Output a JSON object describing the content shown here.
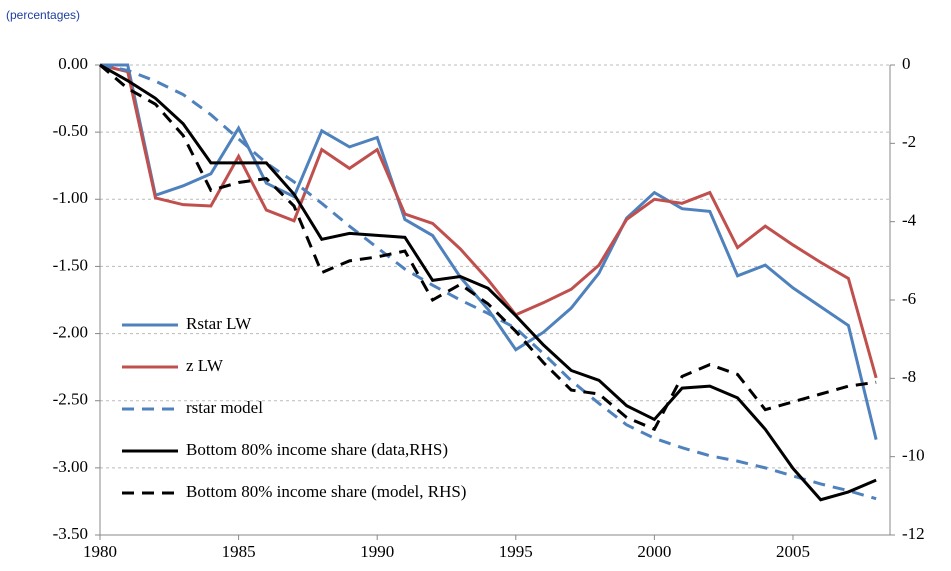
{
  "chart_data": {
    "type": "line",
    "subtitle": "(percentages)",
    "x": [
      1980,
      1981,
      1982,
      1983,
      1984,
      1985,
      1986,
      1987,
      1988,
      1989,
      1990,
      1991,
      1992,
      1993,
      1994,
      1995,
      1996,
      1997,
      1998,
      1999,
      2000,
      2001,
      2002,
      2003,
      2004,
      2005,
      2006,
      2007,
      2008
    ],
    "xlim": [
      1980,
      2008.5
    ],
    "xticks": [
      1980,
      1985,
      1990,
      1995,
      2000,
      2005
    ],
    "ylim": [
      -3.5,
      0
    ],
    "yticks": [
      {
        "value": 0,
        "label": "0.00"
      },
      {
        "value": -0.5,
        "label": "-0.50"
      },
      {
        "value": -1,
        "label": "-1.00"
      },
      {
        "value": -1.5,
        "label": "-1.50"
      },
      {
        "value": -2,
        "label": "-2.00"
      },
      {
        "value": -2.5,
        "label": "-2.50"
      },
      {
        "value": -3,
        "label": "-3.00"
      },
      {
        "value": -3.5,
        "label": "-3.50"
      }
    ],
    "y2lim": [
      -12,
      0
    ],
    "y2ticks": [
      0,
      -2,
      -4,
      -6,
      -8,
      -10,
      -12
    ],
    "grid": true,
    "series": [
      {
        "name": "Rstar LW",
        "color": "#4f81bd",
        "dash": false,
        "values": [
          0,
          0,
          -0.97,
          -0.9,
          -0.81,
          -0.47,
          -0.88,
          -0.98,
          -0.49,
          -0.61,
          -0.54,
          -1.15,
          -1.27,
          -1.58,
          -1.82,
          -2.12,
          -1.99,
          -1.81,
          -1.55,
          -1.14,
          -0.95,
          -1.07,
          -1.09,
          -1.57,
          -1.49,
          -1.66,
          -1.8,
          -1.94,
          -2.79
        ]
      },
      {
        "name": "z LW",
        "color": "#c0504d",
        "dash": false,
        "values": [
          0,
          -0.05,
          -0.99,
          -1.04,
          -1.05,
          -0.68,
          -1.08,
          -1.16,
          -0.63,
          -0.77,
          -0.63,
          -1.11,
          -1.18,
          -1.37,
          -1.6,
          -1.86,
          -1.77,
          -1.67,
          -1.49,
          -1.15,
          -1,
          -1.03,
          -0.95,
          -1.36,
          -1.2,
          -1.34,
          -1.47,
          -1.59,
          -2.33
        ]
      },
      {
        "name": "rstar model",
        "color": "#4f81bd",
        "dash": true,
        "values": [
          0,
          -0.04,
          -0.12,
          -0.22,
          -0.37,
          -0.55,
          -0.73,
          -0.87,
          -1.03,
          -1.2,
          -1.36,
          -1.52,
          -1.64,
          -1.75,
          -1.85,
          -1.96,
          -2.15,
          -2.35,
          -2.52,
          -2.68,
          -2.78,
          -2.85,
          -2.91,
          -2.95,
          -3,
          -3.06,
          -3.12,
          -3.17,
          -3.23
        ]
      },
      {
        "name": "Bottom 80% income share (data,RHS)",
        "color": "#000000",
        "dash": false,
        "axis": "y2",
        "values": [
          0,
          -0.4,
          -0.85,
          -1.5,
          -2.5,
          -2.5,
          -2.5,
          -3.3,
          -4.45,
          -4.3,
          -4.35,
          -4.4,
          -5.5,
          -5.4,
          -5.7,
          -6.4,
          -7.15,
          -7.8,
          -8.05,
          -8.7,
          -9.05,
          -8.25,
          -8.2,
          -8.5,
          -9.3,
          -10.3,
          -11.1,
          -10.9,
          -10.6
        ]
      },
      {
        "name": "Bottom 80% income share (model, RHS)",
        "color": "#000000",
        "dash": true,
        "axis": "y2",
        "values": [
          0,
          -0.6,
          -1,
          -1.8,
          -3.2,
          -3,
          -2.9,
          -3.6,
          -5.3,
          -5,
          -4.9,
          -4.75,
          -6,
          -5.6,
          -6.1,
          -6.8,
          -7.6,
          -8.3,
          -8.4,
          -9,
          -9.3,
          -7.95,
          -7.65,
          -7.9,
          -8.8,
          -8.6,
          -8.4,
          -8.2,
          -8.1
        ]
      }
    ]
  }
}
